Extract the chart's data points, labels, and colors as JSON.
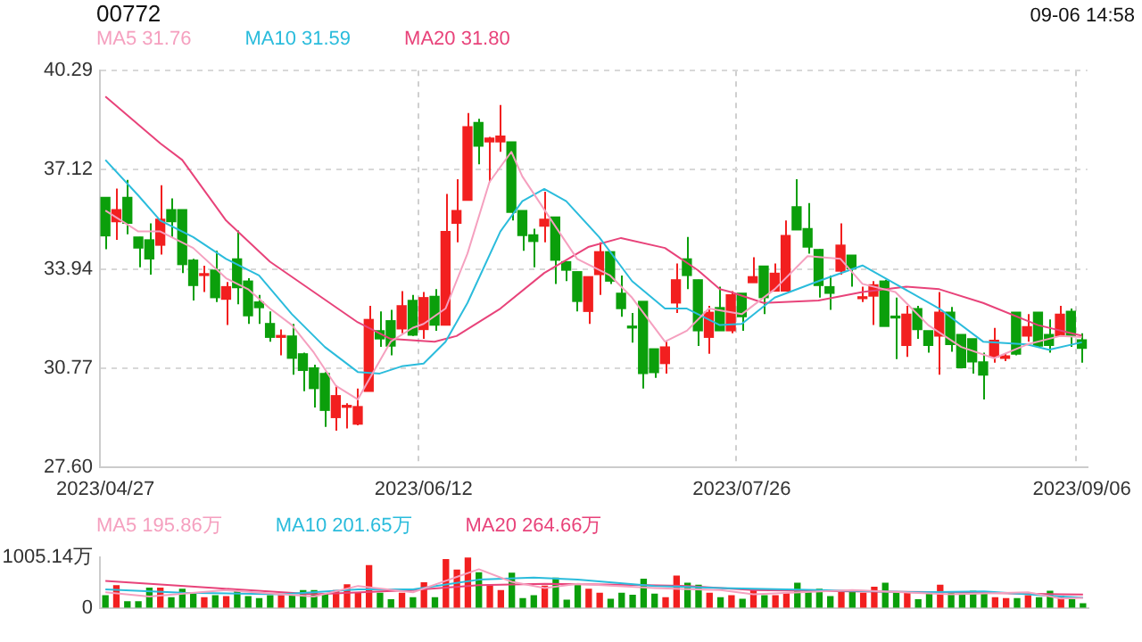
{
  "chart_data": [
    {
      "type": "candlestick",
      "title": "00772",
      "annotations": [
        "09-06 14:58"
      ],
      "categories": [
        "2023/04/27",
        null,
        null,
        null,
        null,
        null,
        null,
        null,
        null,
        null,
        null,
        null,
        null,
        null,
        null,
        null,
        null,
        null,
        null,
        null,
        null,
        null,
        null,
        null,
        null,
        null,
        null,
        null,
        null,
        "2023/06/12",
        null,
        null,
        null,
        null,
        null,
        null,
        null,
        null,
        null,
        null,
        null,
        null,
        null,
        null,
        null,
        null,
        null,
        null,
        null,
        null,
        null,
        null,
        null,
        null,
        null,
        null,
        null,
        null,
        "2023/07/26",
        null,
        null,
        null,
        null,
        null,
        null,
        null,
        null,
        null,
        null,
        null,
        null,
        null,
        null,
        null,
        null,
        null,
        null,
        null,
        null,
        null,
        null,
        null,
        null,
        null,
        null,
        null,
        null,
        null,
        null,
        "2023/09/06"
      ],
      "ohlc": [
        [
          36.23,
          36.23,
          34.57,
          35.0
        ],
        [
          35.45,
          36.51,
          34.87,
          35.84
        ],
        [
          36.23,
          36.79,
          35.05,
          35.4
        ],
        [
          34.96,
          34.96,
          33.99,
          34.61
        ],
        [
          34.87,
          35.4,
          33.76,
          34.26
        ],
        [
          34.7,
          36.62,
          34.4,
          35.53
        ],
        [
          35.84,
          36.2,
          34.96,
          35.45
        ],
        [
          35.84,
          35.84,
          33.81,
          34.08
        ],
        [
          34.22,
          34.26,
          32.93,
          33.41
        ],
        [
          33.73,
          34.04,
          33.2,
          33.76
        ],
        [
          33.9,
          34.52,
          32.88,
          33.02
        ],
        [
          32.97,
          33.52,
          32.14,
          33.37
        ],
        [
          34.26,
          35.17,
          32.81,
          33.34
        ],
        [
          33.55,
          33.64,
          32.18,
          32.44
        ],
        [
          32.88,
          33.11,
          32.18,
          32.7
        ],
        [
          32.19,
          32.58,
          31.61,
          31.75
        ],
        [
          31.75,
          32.0,
          31.17,
          31.79
        ],
        [
          31.79,
          32.18,
          30.55,
          31.08
        ],
        [
          31.22,
          31.26,
          30.02,
          30.69
        ],
        [
          30.77,
          30.87,
          29.5,
          30.11
        ],
        [
          30.59,
          30.64,
          28.88,
          29.41
        ],
        [
          29.18,
          30.2,
          28.76,
          29.88
        ],
        [
          29.51,
          29.64,
          28.83,
          29.55
        ],
        [
          28.97,
          30.11,
          28.93,
          29.53
        ],
        [
          30.02,
          32.76,
          30.02,
          32.32
        ],
        [
          31.96,
          32.58,
          31.44,
          31.7
        ],
        [
          32.28,
          32.63,
          31.17,
          31.47
        ],
        [
          32.02,
          33.23,
          31.88,
          32.76
        ],
        [
          32.93,
          33.11,
          31.79,
          31.82
        ],
        [
          32.0,
          33.2,
          31.7,
          33.02
        ],
        [
          33.06,
          33.29,
          31.96,
          32.14
        ],
        [
          32.14,
          36.34,
          32.14,
          35.14
        ],
        [
          35.4,
          36.81,
          34.79,
          35.81
        ],
        [
          36.14,
          38.93,
          36.14,
          38.49
        ],
        [
          38.63,
          38.75,
          37.29,
          37.87
        ],
        [
          38.01,
          38.17,
          36.72,
          38.13
        ],
        [
          38.01,
          39.19,
          37.69,
          38.19
        ],
        [
          38.01,
          38.01,
          35.49,
          35.75
        ],
        [
          35.81,
          35.81,
          34.52,
          35.01
        ],
        [
          35.03,
          35.23,
          33.99,
          34.82
        ],
        [
          35.31,
          36.41,
          34.79,
          35.53
        ],
        [
          35.6,
          35.6,
          33.46,
          34.22
        ],
        [
          34.17,
          34.17,
          33.55,
          33.9
        ],
        [
          33.85,
          33.85,
          32.58,
          32.9
        ],
        [
          32.58,
          33.69,
          32.18,
          33.69
        ],
        [
          33.76,
          34.79,
          33.11,
          34.49
        ],
        [
          34.49,
          34.49,
          33.46,
          33.55
        ],
        [
          33.16,
          33.73,
          32.41,
          32.67
        ],
        [
          32.1,
          32.53,
          31.58,
          32.05
        ],
        [
          32.9,
          32.9,
          30.11,
          30.59
        ],
        [
          31.38,
          31.38,
          30.45,
          30.62
        ],
        [
          30.91,
          31.61,
          30.59,
          31.44
        ],
        [
          32.85,
          34.11,
          32.53,
          33.59
        ],
        [
          34.26,
          34.96,
          33.29,
          33.73
        ],
        [
          33.59,
          33.59,
          31.47,
          31.96
        ],
        [
          31.75,
          32.76,
          31.22,
          32.55
        ],
        [
          32.7,
          33.37,
          31.96,
          31.96
        ],
        [
          31.96,
          33.23,
          31.88,
          33.11
        ],
        [
          33.16,
          33.16,
          31.96,
          32.41
        ],
        [
          33.5,
          34.31,
          33.5,
          33.69
        ],
        [
          34.03,
          34.03,
          32.49,
          33.02
        ],
        [
          33.23,
          34.11,
          33.23,
          33.8
        ],
        [
          33.23,
          35.49,
          33.23,
          35.01
        ],
        [
          35.93,
          36.81,
          35.19,
          35.19
        ],
        [
          35.23,
          36.05,
          34.43,
          34.64
        ],
        [
          34.56,
          34.57,
          33.02,
          33.41
        ],
        [
          33.37,
          33.73,
          32.63,
          33.16
        ],
        [
          33.87,
          35.4,
          33.76,
          34.7
        ],
        [
          34.38,
          34.38,
          33.37,
          33.94
        ],
        [
          32.99,
          33.37,
          32.88,
          33.02
        ],
        [
          33.07,
          33.55,
          32.14,
          33.43
        ],
        [
          33.55,
          33.59,
          32.1,
          32.1
        ],
        [
          32.41,
          33.02,
          31.05,
          32.37
        ],
        [
          31.49,
          32.76,
          31.12,
          32.49
        ],
        [
          32.67,
          32.76,
          31.7,
          32.0
        ],
        [
          31.96,
          31.96,
          31.26,
          31.49
        ],
        [
          31.79,
          33.2,
          30.55,
          32.55
        ],
        [
          32.55,
          32.72,
          31.29,
          31.52
        ],
        [
          31.84,
          31.84,
          30.78,
          30.78
        ],
        [
          31.7,
          31.7,
          30.59,
          30.96
        ],
        [
          30.96,
          31.26,
          29.76,
          30.54
        ],
        [
          31.12,
          32.05,
          30.94,
          31.65
        ],
        [
          31.08,
          31.22,
          30.99,
          31.15
        ],
        [
          32.55,
          32.55,
          31.17,
          31.21
        ],
        [
          31.79,
          32.49,
          31.61,
          32.09
        ],
        [
          32.55,
          32.55,
          31.44,
          31.47
        ],
        [
          31.84,
          32.32,
          31.26,
          31.49
        ],
        [
          31.79,
          32.76,
          31.79,
          32.49
        ],
        [
          32.58,
          32.67,
          31.44,
          31.79
        ],
        [
          31.67,
          31.88,
          30.94,
          31.4
        ]
      ],
      "colors": [
        "#0b9f0b",
        "#f21f1f",
        "#0b9f0b",
        "#0b9f0b",
        "#0b9f0b",
        "#f21f1f",
        "#0b9f0b",
        "#0b9f0b",
        "#0b9f0b",
        "#f21f1f",
        "#0b9f0b",
        "#f21f1f",
        "#0b9f0b",
        "#0b9f0b",
        "#0b9f0b",
        "#0b9f0b",
        "#f21f1f",
        "#0b9f0b",
        "#0b9f0b",
        "#0b9f0b",
        "#0b9f0b",
        "#f21f1f",
        "#f21f1f",
        "#f21f1f",
        "#f21f1f",
        "#0b9f0b",
        "#0b9f0b",
        "#f21f1f",
        "#0b9f0b",
        "#f21f1f",
        "#0b9f0b",
        "#f21f1f",
        "#f21f1f",
        "#f21f1f",
        "#0b9f0b",
        "#f21f1f",
        "#f21f1f",
        "#0b9f0b",
        "#0b9f0b",
        "#0b9f0b",
        "#f21f1f",
        "#0b9f0b",
        "#0b9f0b",
        "#0b9f0b",
        "#f21f1f",
        "#f21f1f",
        "#0b9f0b",
        "#0b9f0b",
        "#0b9f0b",
        "#0b9f0b",
        "#0b9f0b",
        "#f21f1f",
        "#f21f1f",
        "#0b9f0b",
        "#0b9f0b",
        "#f21f1f",
        "#0b9f0b",
        "#f21f1f",
        "#0b9f0b",
        "#f21f1f",
        "#0b9f0b",
        "#f21f1f",
        "#f21f1f",
        "#0b9f0b",
        "#0b9f0b",
        "#0b9f0b",
        "#0b9f0b",
        "#f21f1f",
        "#0b9f0b",
        "#f21f1f",
        "#f21f1f",
        "#0b9f0b",
        "#0b9f0b",
        "#f21f1f",
        "#0b9f0b",
        "#0b9f0b",
        "#f21f1f",
        "#0b9f0b",
        "#0b9f0b",
        "#0b9f0b",
        "#0b9f0b",
        "#f21f1f",
        "#f21f1f",
        "#0b9f0b",
        "#f21f1f",
        "#0b9f0b",
        "#0b9f0b",
        "#f21f1f",
        "#0b9f0b",
        "#0b9f0b"
      ],
      "series": [
        {
          "type": "line",
          "name": "MA5 31.76",
          "color": "#f5a0bf",
          "values": [
            35.81,
            null,
            null,
            35.14,
            null,
            35.14,
            null,
            null,
            34.61,
            null,
            null,
            33.64,
            null,
            33.29,
            null,
            32.67,
            null,
            32.14,
            null,
            31.26,
            null,
            30.2,
            null,
            29.76,
            30.38,
            null,
            31.61,
            null,
            32.05,
            32.18,
            null,
            32.67,
            null,
            34.43,
            null,
            36.72,
            null,
            37.69,
            36.9,
            null,
            null,
            35.31,
            null,
            34.26,
            null,
            null,
            33.73,
            null,
            33.02,
            null,
            null,
            31.61,
            null,
            31.96,
            null,
            32.67,
            null,
            null,
            32.49,
            null,
            null,
            33.29,
            null,
            null,
            34.35,
            null,
            null,
            34.26,
            null,
            33.46,
            null,
            null,
            33.2,
            null,
            null,
            32.14,
            null,
            null,
            31.44,
            null,
            null,
            31.08,
            null,
            null,
            31.52,
            null,
            null,
            31.79,
            null,
            31.76
          ]
        },
        {
          "type": "line",
          "name": "MA10 31.59",
          "color": "#2bbcdc",
          "values": [
            37.43,
            null,
            null,
            36.29,
            null,
            35.49,
            null,
            null,
            34.96,
            null,
            null,
            34.26,
            null,
            null,
            33.73,
            null,
            null,
            32.49,
            null,
            null,
            31.44,
            null,
            null,
            30.64,
            null,
            30.59,
            null,
            30.82,
            null,
            30.91,
            null,
            31.61,
            null,
            32.85,
            null,
            null,
            35.14,
            null,
            36.11,
            null,
            36.5,
            null,
            36.11,
            null,
            null,
            34.96,
            null,
            null,
            33.55,
            null,
            null,
            32.67,
            null,
            32.67,
            null,
            null,
            32.14,
            null,
            32.18,
            null,
            null,
            33.02,
            null,
            null,
            null,
            33.55,
            null,
            null,
            null,
            34.05,
            null,
            null,
            33.46,
            null,
            null,
            null,
            32.67,
            null,
            null,
            null,
            31.61,
            null,
            null,
            null,
            31.52,
            null,
            31.35,
            null,
            null,
            31.59
          ]
        },
        {
          "type": "line",
          "name": "MA20 31.80",
          "color": "#e8437a",
          "values": [
            39.46,
            null,
            null,
            null,
            null,
            37.96,
            null,
            37.43,
            null,
            null,
            null,
            35.49,
            null,
            null,
            null,
            34.17,
            null,
            null,
            null,
            33.2,
            null,
            null,
            null,
            32.23,
            null,
            null,
            31.7,
            null,
            null,
            null,
            31.61,
            null,
            31.79,
            null,
            null,
            null,
            32.67,
            null,
            null,
            null,
            33.81,
            null,
            null,
            null,
            34.64,
            null,
            null,
            34.93,
            null,
            null,
            null,
            34.61,
            null,
            null,
            33.9,
            null,
            33.29,
            33.2,
            null,
            null,
            32.85,
            null,
            null,
            null,
            null,
            32.93,
            null,
            null,
            null,
            33.2,
            null,
            null,
            null,
            33.37,
            null,
            null,
            33.29,
            null,
            null,
            null,
            32.85,
            null,
            null,
            null,
            null,
            32.14,
            null,
            null,
            null,
            31.8
          ]
        }
      ],
      "ylim": [
        27.6,
        40.29
      ],
      "yticks": [
        {
          "value": 27.6,
          "label": "27.60"
        },
        30.77,
        33.94,
        37.12,
        40.29
      ],
      "grid": true,
      "legend": "top left",
      "marker": "none"
    },
    {
      "type": "bar",
      "categories": [
        null,
        null,
        null,
        null,
        null,
        null,
        null,
        null,
        null,
        null,
        null,
        null,
        null,
        null,
        null,
        null,
        null,
        null,
        null,
        null,
        null,
        null,
        null,
        null,
        null,
        null,
        null,
        null,
        null,
        null,
        null,
        null,
        null,
        null,
        null,
        null,
        null,
        null,
        null,
        null,
        null,
        null,
        null,
        null,
        null,
        null,
        null,
        null,
        null,
        null,
        null,
        null,
        null,
        null,
        null,
        null,
        null,
        null,
        null,
        null,
        null,
        null,
        null,
        null,
        null,
        null,
        null,
        null,
        null,
        null,
        null,
        null,
        null,
        null,
        null,
        null,
        null,
        null,
        null,
        null,
        null,
        null,
        null,
        null,
        null,
        null,
        null,
        null,
        null,
        null
      ],
      "values": [
        240,
        440,
        120,
        120,
        390,
        390,
        200,
        370,
        290,
        200,
        240,
        220,
        320,
        220,
        180,
        240,
        240,
        230,
        340,
        340,
        270,
        340,
        460,
        300,
        840,
        290,
        160,
        290,
        200,
        500,
        200,
        960,
        750,
        1000,
        700,
        460,
        340,
        690,
        180,
        240,
        430,
        590,
        150,
        440,
        370,
        290,
        170,
        290,
        250,
        570,
        270,
        200,
        630,
        490,
        450,
        290,
        200,
        240,
        170,
        370,
        240,
        240,
        290,
        490,
        320,
        370,
        220,
        300,
        300,
        290,
        410,
        490,
        300,
        290,
        160,
        290,
        450,
        290,
        270,
        330,
        270,
        200,
        180,
        180,
        240,
        200,
        330,
        230,
        160,
        80
      ],
      "colors": [
        "#0b9f0b",
        "#f21f1f",
        "#0b9f0b",
        "#0b9f0b",
        "#0b9f0b",
        "#f21f1f",
        "#0b9f0b",
        "#0b9f0b",
        "#0b9f0b",
        "#f21f1f",
        "#0b9f0b",
        "#f21f1f",
        "#0b9f0b",
        "#0b9f0b",
        "#0b9f0b",
        "#0b9f0b",
        "#f21f1f",
        "#0b9f0b",
        "#0b9f0b",
        "#0b9f0b",
        "#0b9f0b",
        "#f21f1f",
        "#f21f1f",
        "#f21f1f",
        "#f21f1f",
        "#0b9f0b",
        "#0b9f0b",
        "#f21f1f",
        "#0b9f0b",
        "#f21f1f",
        "#0b9f0b",
        "#f21f1f",
        "#f21f1f",
        "#f21f1f",
        "#0b9f0b",
        "#f21f1f",
        "#f21f1f",
        "#0b9f0b",
        "#0b9f0b",
        "#0b9f0b",
        "#f21f1f",
        "#0b9f0b",
        "#0b9f0b",
        "#0b9f0b",
        "#f21f1f",
        "#f21f1f",
        "#0b9f0b",
        "#0b9f0b",
        "#0b9f0b",
        "#0b9f0b",
        "#0b9f0b",
        "#f21f1f",
        "#f21f1f",
        "#0b9f0b",
        "#0b9f0b",
        "#f21f1f",
        "#0b9f0b",
        "#f21f1f",
        "#0b9f0b",
        "#f21f1f",
        "#0b9f0b",
        "#f21f1f",
        "#f21f1f",
        "#0b9f0b",
        "#0b9f0b",
        "#0b9f0b",
        "#0b9f0b",
        "#f21f1f",
        "#0b9f0b",
        "#f21f1f",
        "#f21f1f",
        "#0b9f0b",
        "#0b9f0b",
        "#f21f1f",
        "#0b9f0b",
        "#0b9f0b",
        "#f21f1f",
        "#0b9f0b",
        "#0b9f0b",
        "#0b9f0b",
        "#0b9f0b",
        "#f21f1f",
        "#f21f1f",
        "#0b9f0b",
        "#f21f1f",
        "#0b9f0b",
        "#0b9f0b",
        "#f21f1f",
        "#0b9f0b",
        "#0b9f0b"
      ],
      "series": [
        {
          "type": "line",
          "name": "MA5 195.86万",
          "color": "#f5a0bf",
          "values": [
            310,
            null,
            null,
            null,
            226,
            null,
            null,
            null,
            null,
            null,
            null,
            352,
            null,
            null,
            null,
            null,
            null,
            null,
            null,
            226,
            null,
            null,
            null,
            436,
            null,
            null,
            null,
            null,
            310,
            null,
            null,
            null,
            null,
            null,
            770,
            null,
            null,
            519,
            null,
            null,
            394,
            null,
            null,
            477,
            null,
            null,
            null,
            null,
            null,
            null,
            394,
            null,
            null,
            null,
            null,
            null,
            352,
            null,
            null,
            268,
            null,
            null,
            null,
            null,
            null,
            null,
            null,
            null,
            352,
            null,
            null,
            null,
            null,
            null,
            null,
            null,
            null,
            268,
            null,
            null,
            null,
            null,
            null,
            null,
            310,
            null,
            null,
            184,
            null,
            195.86
          ]
        },
        {
          "type": "line",
          "name": "MA10 201.65万",
          "color": "#2bbcdc",
          "values": [
            369,
            null,
            null,
            null,
            null,
            null,
            null,
            302,
            null,
            null,
            null,
            null,
            null,
            null,
            null,
            null,
            268,
            null,
            null,
            null,
            null,
            null,
            null,
            369,
            null,
            null,
            null,
            null,
            369,
            null,
            null,
            null,
            null,
            null,
            561,
            null,
            null,
            null,
            null,
            603,
            null,
            null,
            null,
            561,
            null,
            null,
            null,
            null,
            null,
            null,
            436,
            null,
            null,
            null,
            null,
            null,
            394,
            null,
            null,
            null,
            null,
            null,
            null,
            null,
            null,
            352,
            null,
            null,
            null,
            null,
            null,
            null,
            null,
            null,
            310,
            null,
            null,
            null,
            null,
            null,
            327,
            null,
            null,
            null,
            null,
            null,
            null,
            226,
            null,
            201.65
          ]
        },
        {
          "type": "line",
          "name": "MA20 264.66万",
          "color": "#e8437a",
          "values": [
            536,
            null,
            null,
            null,
            null,
            null,
            null,
            null,
            null,
            null,
            394,
            null,
            null,
            null,
            null,
            null,
            null,
            null,
            null,
            268,
            null,
            null,
            null,
            null,
            null,
            null,
            null,
            null,
            352,
            null,
            null,
            null,
            null,
            null,
            452,
            null,
            null,
            null,
            null,
            null,
            477,
            null,
            null,
            null,
            null,
            null,
            null,
            461,
            null,
            null,
            null,
            null,
            null,
            436,
            null,
            null,
            null,
            null,
            null,
            352,
            null,
            null,
            null,
            null,
            null,
            null,
            null,
            null,
            327,
            null,
            null,
            null,
            null,
            null,
            null,
            null,
            null,
            310,
            null,
            null,
            null,
            null,
            null,
            null,
            null,
            null,
            null,
            268,
            null,
            264.66
          ]
        }
      ],
      "ylim": [
        0,
        1005.14
      ],
      "yticks": [
        0,
        {
          "value": 1005.14,
          "label": "1005.14万"
        }
      ],
      "legend": "top left",
      "marker": "none"
    }
  ]
}
